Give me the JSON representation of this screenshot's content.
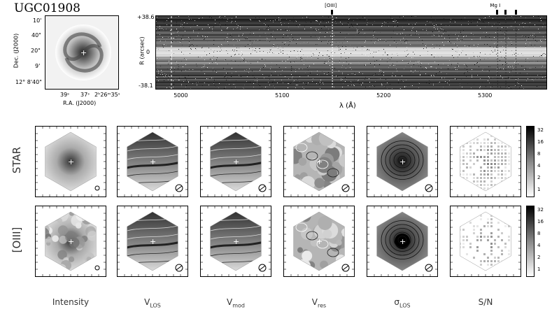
{
  "galaxy_name": "UGC01908",
  "image_panel": {
    "dec_label": "Dec. (J2000)",
    "ra_label": "R.A. (J2000)",
    "dec_ticks": [
      "10'",
      "40\"",
      "20\"",
      "9'",
      "12° 8'40\""
    ],
    "ra_ticks": [
      "39ˢ",
      "37ˢ",
      "2ʰ26ᵐ35ˢ"
    ]
  },
  "spectrum": {
    "xlabel": "λ (Å)",
    "ylabel": "R (arcsec)",
    "x_ticks": [
      "5000",
      "5100",
      "5200",
      "5300"
    ],
    "y_ticks": [
      "+38.6",
      "0",
      "-38.1"
    ],
    "lines": [
      {
        "label": "[OIII]",
        "x": 5149
      },
      {
        "label": "Mg I",
        "x": 5312
      },
      {
        "label": "",
        "x": 5320
      },
      {
        "label": "",
        "x": 5330
      }
    ],
    "xlim": [
      4975,
      5360
    ],
    "ylim": [
      -38.1,
      38.6
    ]
  },
  "rows": [
    {
      "label": "STAR"
    },
    {
      "label": "[OIII]"
    }
  ],
  "columns": [
    {
      "base": "Intensity",
      "sub": ""
    },
    {
      "base": "V",
      "sub": "LOS"
    },
    {
      "base": "V",
      "sub": "mod"
    },
    {
      "base": "V",
      "sub": "res"
    },
    {
      "base": "σ",
      "sub": "LOS"
    },
    {
      "base": "S/N",
      "sub": ""
    }
  ],
  "colorbar": {
    "ticks": [
      "32",
      "16",
      "8",
      "4",
      "2",
      "1"
    ]
  }
}
